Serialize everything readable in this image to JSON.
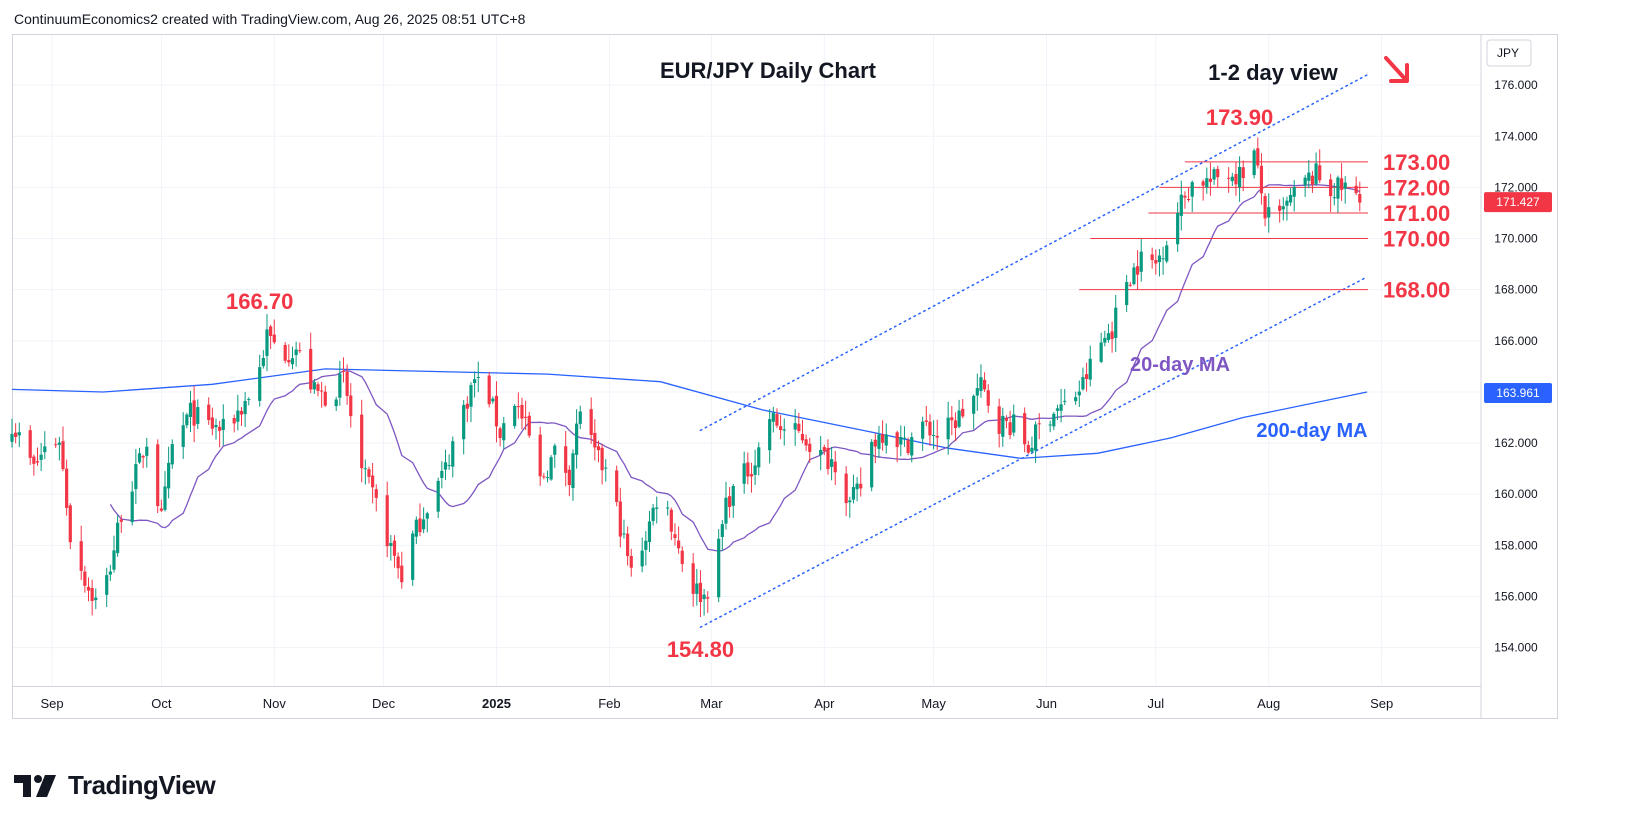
{
  "header": {
    "attribution": "ContinuumEconomics2 created with TradingView.com, Aug 26, 2025 08:51 UTC+8"
  },
  "branding": {
    "logo_text": "TradingView"
  },
  "chart_data": {
    "type": "candlestick",
    "title": "EUR/JPY Daily Chart",
    "view_label": "1-2 day view",
    "view_arrow": "down-right-arrow",
    "currency": "JPY",
    "y_range": [
      152.5,
      178.0
    ],
    "y_ticks": [
      154,
      156,
      158,
      160,
      162,
      164,
      166,
      168,
      170,
      172,
      174,
      176
    ],
    "y_tick_labels": [
      "154.000",
      "156.000",
      "158.000",
      "160.000",
      "162.000",
      "164.000",
      "166.000",
      "168.000",
      "170.000",
      "172.000",
      "174.000",
      "176.000"
    ],
    "x_range": [
      "2024-08-21",
      "2025-09-28"
    ],
    "x_ticks": [
      {
        "label": "Sep",
        "date": "2024-09-01",
        "bold": false
      },
      {
        "label": "Oct",
        "date": "2024-10-01",
        "bold": false
      },
      {
        "label": "Nov",
        "date": "2024-11-01",
        "bold": false
      },
      {
        "label": "Dec",
        "date": "2024-12-01",
        "bold": false
      },
      {
        "label": "2025",
        "date": "2025-01-01",
        "bold": true
      },
      {
        "label": "Feb",
        "date": "2025-02-01",
        "bold": false
      },
      {
        "label": "Mar",
        "date": "2025-03-01",
        "bold": false
      },
      {
        "label": "Apr",
        "date": "2025-04-01",
        "bold": false
      },
      {
        "label": "May",
        "date": "2025-05-01",
        "bold": false
      },
      {
        "label": "Jun",
        "date": "2025-06-01",
        "bold": false
      },
      {
        "label": "Jul",
        "date": "2025-07-01",
        "bold": false
      },
      {
        "label": "Aug",
        "date": "2025-08-01",
        "bold": false
      },
      {
        "label": "Sep",
        "date": "2025-09-01",
        "bold": false
      }
    ],
    "close_path": [
      [
        "2024-08-21",
        162.8
      ],
      [
        "2024-08-27",
        161.0
      ],
      [
        "2024-08-30",
        161.8
      ],
      [
        "2024-09-03",
        162.2
      ],
      [
        "2024-09-06",
        158.4
      ],
      [
        "2024-09-11",
        156.3
      ],
      [
        "2024-09-14",
        155.6
      ],
      [
        "2024-09-17",
        157.2
      ],
      [
        "2024-09-20",
        159.3
      ],
      [
        "2024-09-24",
        160.8
      ],
      [
        "2024-09-27",
        162.1
      ],
      [
        "2024-10-01",
        159.0
      ],
      [
        "2024-10-04",
        161.8
      ],
      [
        "2024-10-09",
        163.2
      ],
      [
        "2024-10-14",
        162.7
      ],
      [
        "2024-10-18",
        162.5
      ],
      [
        "2024-10-23",
        163.4
      ],
      [
        "2024-10-27",
        164.3
      ],
      [
        "2024-10-30",
        166.2
      ],
      [
        "2024-11-03",
        165.5
      ],
      [
        "2024-11-07",
        165.7
      ],
      [
        "2024-11-12",
        164.0
      ],
      [
        "2024-11-16",
        163.8
      ],
      [
        "2024-11-20",
        164.5
      ],
      [
        "2024-11-25",
        160.9
      ],
      [
        "2024-11-29",
        159.6
      ],
      [
        "2024-12-03",
        157.9
      ],
      [
        "2024-12-06",
        156.8
      ],
      [
        "2024-12-09",
        158.3
      ],
      [
        "2024-12-13",
        159.6
      ],
      [
        "2024-12-18",
        161.0
      ],
      [
        "2024-12-22",
        163.0
      ],
      [
        "2024-12-26",
        164.5
      ],
      [
        "2024-12-30",
        163.8
      ],
      [
        "2025-01-02",
        162.4
      ],
      [
        "2025-01-06",
        163.7
      ],
      [
        "2025-01-10",
        162.2
      ],
      [
        "2025-01-13",
        160.5
      ],
      [
        "2025-01-17",
        161.6
      ],
      [
        "2025-01-21",
        160.8
      ],
      [
        "2025-01-24",
        163.4
      ],
      [
        "2025-01-28",
        161.5
      ],
      [
        "2025-01-31",
        160.9
      ],
      [
        "2025-02-03",
        159.4
      ],
      [
        "2025-02-07",
        156.9
      ],
      [
        "2025-02-11",
        158.4
      ],
      [
        "2025-02-15",
        160.3
      ],
      [
        "2025-02-19",
        158.4
      ],
      [
        "2025-02-23",
        156.5
      ],
      [
        "2025-02-27",
        156.0
      ],
      [
        "2025-03-02",
        157.0
      ],
      [
        "2025-03-05",
        159.7
      ],
      [
        "2025-03-09",
        160.6
      ],
      [
        "2025-03-13",
        161.3
      ],
      [
        "2025-03-17",
        163.0
      ],
      [
        "2025-03-21",
        162.5
      ],
      [
        "2025-03-26",
        162.3
      ],
      [
        "2025-03-31",
        161.5
      ],
      [
        "2025-04-04",
        161.3
      ],
      [
        "2025-04-08",
        159.6
      ],
      [
        "2025-04-11",
        160.3
      ],
      [
        "2025-04-14",
        162.0
      ],
      [
        "2025-04-18",
        162.6
      ],
      [
        "2025-04-23",
        161.9
      ],
      [
        "2025-04-28",
        162.7
      ],
      [
        "2025-05-02",
        162.3
      ],
      [
        "2025-05-06",
        162.7
      ],
      [
        "2025-05-10",
        163.4
      ],
      [
        "2025-05-14",
        164.2
      ],
      [
        "2025-05-19",
        162.8
      ],
      [
        "2025-05-23",
        162.7
      ],
      [
        "2025-05-27",
        161.8
      ],
      [
        "2025-05-30",
        162.6
      ],
      [
        "2025-06-03",
        163.3
      ],
      [
        "2025-06-07",
        163.5
      ],
      [
        "2025-06-11",
        164.3
      ],
      [
        "2025-06-15",
        165.7
      ],
      [
        "2025-06-19",
        166.5
      ],
      [
        "2025-06-23",
        168.4
      ],
      [
        "2025-06-27",
        169.2
      ],
      [
        "2025-07-01",
        169.0
      ],
      [
        "2025-07-04",
        170.0
      ],
      [
        "2025-07-08",
        171.4
      ],
      [
        "2025-07-12",
        172.4
      ],
      [
        "2025-07-16",
        172.2
      ],
      [
        "2025-07-20",
        172.6
      ],
      [
        "2025-07-24",
        172.5
      ],
      [
        "2025-07-28",
        173.3
      ],
      [
        "2025-07-31",
        171.0
      ],
      [
        "2025-08-03",
        170.5
      ],
      [
        "2025-08-06",
        171.3
      ],
      [
        "2025-08-10",
        172.1
      ],
      [
        "2025-08-14",
        172.5
      ],
      [
        "2025-08-18",
        171.9
      ],
      [
        "2025-08-22",
        172.0
      ],
      [
        "2025-08-26",
        171.427
      ]
    ],
    "annotations": [
      {
        "text": "166.70",
        "date": "2024-10-28",
        "value": 166.7,
        "place": "above"
      },
      {
        "text": "173.90",
        "date": "2025-07-24",
        "value": 173.9,
        "place": "above"
      },
      {
        "text": "154.80",
        "date": "2025-02-26",
        "value": 154.8,
        "place": "below"
      }
    ],
    "levels": [
      {
        "value": 173.0,
        "label": "173.00",
        "from": "2025-07-09"
      },
      {
        "value": 172.0,
        "label": "172.00",
        "from": "2025-07-02"
      },
      {
        "value": 171.0,
        "label": "171.00",
        "from": "2025-06-29"
      },
      {
        "value": 170.0,
        "label": "170.00",
        "from": "2025-06-13"
      },
      {
        "value": 168.0,
        "label": "168.00",
        "from": "2025-06-10"
      }
    ],
    "channel": [
      {
        "name": "upper",
        "start": [
          "2025-02-26",
          162.5
        ],
        "end": [
          "2025-08-28",
          176.4
        ]
      },
      {
        "name": "lower",
        "start": [
          "2025-02-26",
          154.8
        ],
        "end": [
          "2025-08-28",
          168.5
        ]
      }
    ],
    "ma20": {
      "label": "20-day MA",
      "color": "#7e57c2"
    },
    "ma200": {
      "label": "200-day MA",
      "color": "#2962ff",
      "points": [
        [
          "2024-08-21",
          164.1
        ],
        [
          "2024-09-15",
          164.0
        ],
        [
          "2024-10-15",
          164.3
        ],
        [
          "2024-11-15",
          164.9
        ],
        [
          "2024-12-15",
          164.8
        ],
        [
          "2025-01-15",
          164.7
        ],
        [
          "2025-02-15",
          164.4
        ],
        [
          "2025-03-15",
          163.3
        ],
        [
          "2025-04-15",
          162.4
        ],
        [
          "2025-05-05",
          161.8
        ],
        [
          "2025-05-25",
          161.4
        ],
        [
          "2025-06-15",
          161.6
        ],
        [
          "2025-07-05",
          162.2
        ],
        [
          "2025-07-25",
          163.0
        ],
        [
          "2025-08-28",
          164.0
        ]
      ]
    },
    "last_price": {
      "value": 171.427,
      "label": "171.427"
    },
    "ma200_last": {
      "value": 163.961,
      "label": "163.961"
    },
    "colors": {
      "up": "#089981",
      "down": "#f23645",
      "annotation": "#f23645",
      "level": "#f23645",
      "channel": "#2962ff",
      "grid": "#f0f3fa"
    }
  }
}
